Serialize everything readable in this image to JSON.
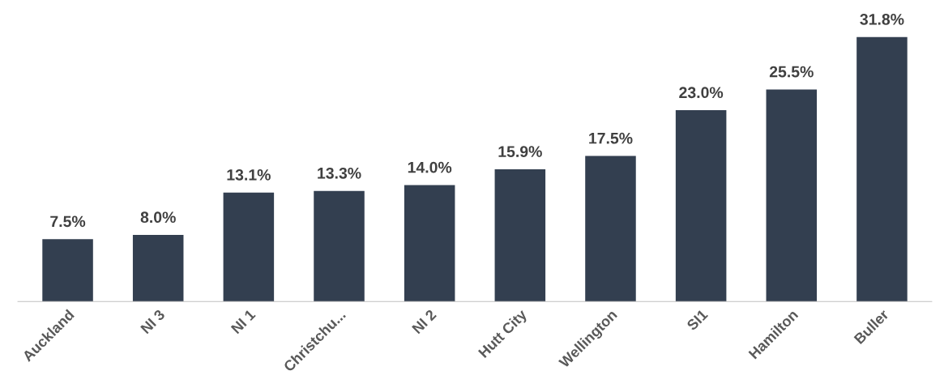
{
  "chart_data": {
    "type": "bar",
    "categories": [
      "Auckland",
      "NI 3",
      "NI 1",
      "Christchu...",
      "NI 2",
      "Hutt City",
      "Wellington",
      "SI1",
      "Hamilton",
      "Buller"
    ],
    "values": [
      7.5,
      8.0,
      13.1,
      13.3,
      14.0,
      15.9,
      17.5,
      23.0,
      25.5,
      31.8
    ],
    "value_labels": [
      "7.5%",
      "8.0%",
      "13.1%",
      "13.3%",
      "14.0%",
      "15.9%",
      "17.5%",
      "23.0%",
      "25.5%",
      "31.8%"
    ],
    "color": "#333f50",
    "tick_labels": "x",
    "grid": false,
    "legend": false
  }
}
